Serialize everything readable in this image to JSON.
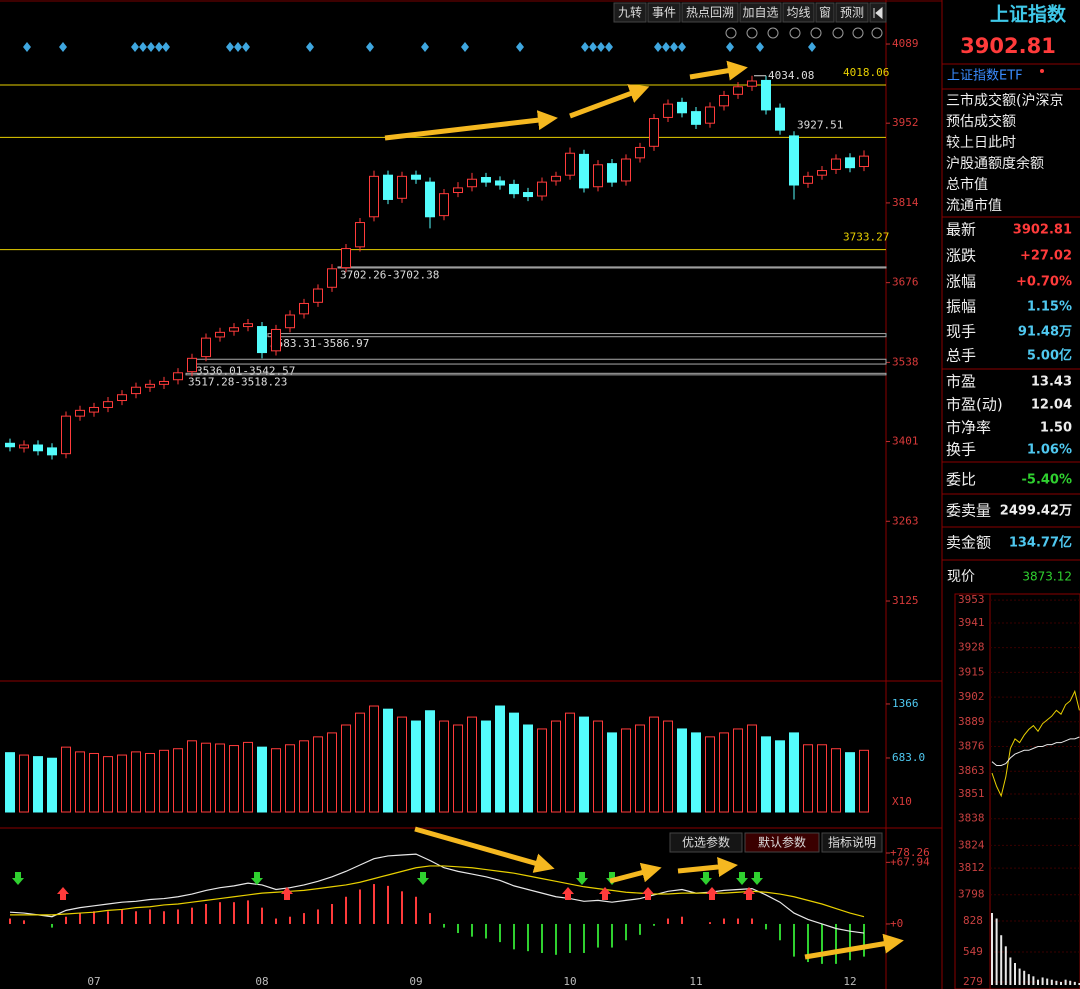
{
  "toolbar": [
    "九转",
    "事件",
    "热点回溯",
    "加自选",
    "均线",
    "窗",
    "预测"
  ],
  "chart_data": [
    {
      "type": "candlestick",
      "categories": [
        null,
        null,
        null,
        null,
        null,
        null,
        "07",
        null,
        null,
        null,
        null,
        null,
        null,
        null,
        null,
        null,
        null,
        null,
        "08",
        null,
        null,
        null,
        null,
        null,
        null,
        null,
        null,
        null,
        null,
        "09",
        null,
        null,
        null,
        null,
        null,
        null,
        null,
        null,
        null,
        null,
        "10",
        null,
        null,
        null,
        null,
        null,
        null,
        null,
        null,
        "11",
        null,
        null,
        null,
        null,
        null,
        null,
        null,
        null,
        null,
        null,
        "12",
        null
      ],
      "open": [
        3398,
        3390,
        3395,
        3390,
        3380,
        3445,
        3452,
        3460,
        3472,
        3484,
        3495,
        3500,
        3508,
        3522,
        3548,
        3582,
        3592,
        3600,
        3600,
        3558,
        3598,
        3622,
        3642,
        3668,
        3702,
        3738,
        3790,
        3862,
        3822,
        3862,
        3850,
        3792,
        3832,
        3842,
        3858,
        3852,
        3846,
        3832,
        3826,
        3852,
        3862,
        3898,
        3842,
        3882,
        3852,
        3892,
        3912,
        3962,
        3988,
        3972,
        3952,
        3982,
        4002,
        4016,
        4026,
        3978,
        3930,
        3848,
        3862,
        3872,
        3892,
        3877
      ],
      "high": [
        3406,
        3403,
        3403,
        3398,
        3453,
        3463,
        3468,
        3478,
        3490,
        3503,
        3508,
        3513,
        3528,
        3553,
        3588,
        3598,
        3606,
        3613,
        3608,
        3603,
        3628,
        3648,
        3673,
        3708,
        3743,
        3788,
        3870,
        3870,
        3868,
        3870,
        3858,
        3838,
        3850,
        3866,
        3866,
        3860,
        3854,
        3840,
        3858,
        3868,
        3910,
        3906,
        3888,
        3890,
        3898,
        3918,
        3968,
        3993,
        3996,
        3980,
        3988,
        4008,
        4023,
        4034.08,
        4034,
        3986,
        3938,
        3868,
        3878,
        3898,
        3900,
        3905
      ],
      "low": [
        3384,
        3382,
        3377,
        3370,
        3372,
        3437,
        3444,
        3452,
        3464,
        3476,
        3487,
        3492,
        3500,
        3514,
        3540,
        3574,
        3584,
        3592,
        3545,
        3550,
        3590,
        3614,
        3634,
        3660,
        3694,
        3730,
        3782,
        3812,
        3814,
        3847,
        3770,
        3784,
        3824,
        3834,
        3842,
        3837,
        3822,
        3817,
        3818,
        3844,
        3854,
        3832,
        3834,
        3842,
        3844,
        3884,
        3904,
        3954,
        3962,
        3942,
        3944,
        3974,
        3994,
        4008,
        3967,
        3932,
        3820,
        3840,
        3854,
        3864,
        3867,
        3869
      ],
      "close": [
        3392,
        3395,
        3385,
        3378,
        3445,
        3455,
        3460,
        3470,
        3482,
        3495,
        3500,
        3505,
        3520,
        3545,
        3580,
        3590,
        3598,
        3605,
        3555,
        3595,
        3620,
        3640,
        3665,
        3700,
        3735,
        3780,
        3860,
        3820,
        3860,
        3855,
        3790,
        3830,
        3840,
        3855,
        3850,
        3845,
        3830,
        3825,
        3850,
        3860,
        3900,
        3840,
        3880,
        3850,
        3890,
        3910,
        3960,
        3985,
        3970,
        3950,
        3980,
        4000,
        4015,
        4025,
        3975,
        3940,
        3845,
        3860,
        3870,
        3890,
        3875,
        3895
      ],
      "up_color": "#ff3b3b",
      "down_color": "#54fcfc",
      "ylim": [
        2988.3,
        4165.2
      ],
      "yticks": [
        4089,
        3952,
        3814,
        3676,
        3538,
        3401,
        3263,
        3125
      ],
      "hlines": [
        {
          "value": 4018.06,
          "label": "4018.06"
        },
        {
          "value": 3927.51,
          "label": "3927.51"
        },
        {
          "value": 3733.27,
          "label": "3733.27"
        }
      ],
      "hline_color": "#e8d000",
      "peak_label": "4034.08",
      "gaps": [
        {
          "low": 3702.26,
          "high": 3702.38,
          "label": "3702.26-3702.38"
        },
        {
          "low": 3583.31,
          "high": 3586.97,
          "label": "3583.31-3586.97"
        },
        {
          "low": 3536.01,
          "high": 3542.57,
          "label": "3536.01-3542.57"
        },
        {
          "low": 3517.28,
          "high": 3518.23,
          "label": "3517.28-3518.23"
        }
      ]
    },
    {
      "type": "bar",
      "values": [
        750,
        720,
        700,
        680,
        820,
        760,
        740,
        700,
        720,
        760,
        740,
        780,
        800,
        900,
        870,
        860,
        840,
        880,
        820,
        800,
        850,
        900,
        950,
        1000,
        1100,
        1250,
        1340,
        1300,
        1200,
        1150,
        1280,
        1150,
        1100,
        1200,
        1150,
        1340,
        1250,
        1100,
        1050,
        1150,
        1250,
        1200,
        1150,
        1000,
        1050,
        1100,
        1200,
        1150,
        1050,
        1000,
        950,
        1000,
        1050,
        1100,
        950,
        900,
        1000,
        850,
        850,
        800,
        750,
        780
      ],
      "ylim": [
        0,
        1631
      ],
      "yticks": [
        1366,
        {
          "value": 683,
          "label": "683.0"
        }
      ],
      "unit": "X10"
    },
    {
      "type": "macd",
      "dif": [
        13,
        12,
        10,
        8,
        15,
        18,
        20,
        22,
        24,
        25,
        27,
        28,
        30,
        33,
        37,
        40,
        42,
        45,
        43,
        38,
        40,
        43,
        47,
        52,
        58,
        65,
        72,
        75,
        76,
        77,
        70,
        62,
        58,
        55,
        52,
        48,
        42,
        38,
        34,
        30,
        28,
        25,
        26,
        24,
        26,
        28,
        32,
        36,
        38,
        34,
        35,
        37,
        38,
        39,
        32,
        24,
        12,
        5,
        0,
        -5,
        -8,
        -10
      ],
      "dea": [
        10,
        10,
        10,
        10,
        11,
        12,
        13,
        15,
        16,
        18,
        19,
        21,
        22,
        24,
        26,
        28,
        30,
        32,
        34,
        35,
        36,
        37,
        39,
        41,
        43,
        46,
        50,
        54,
        58,
        62,
        64,
        64,
        63,
        62,
        60,
        58,
        56,
        53,
        50,
        47,
        44,
        41,
        39,
        37,
        35,
        34,
        33,
        33,
        34,
        34,
        34,
        34,
        35,
        36,
        35,
        33,
        30,
        26,
        22,
        17,
        12,
        8
      ],
      "histogram": [
        6,
        4,
        0,
        -4,
        8,
        12,
        14,
        14,
        16,
        14,
        16,
        14,
        16,
        18,
        22,
        24,
        24,
        26,
        18,
        6,
        8,
        12,
        16,
        22,
        30,
        38,
        44,
        42,
        36,
        30,
        12,
        -4,
        -10,
        -14,
        -16,
        -20,
        -28,
        -30,
        -32,
        -34,
        -32,
        -32,
        -26,
        -26,
        -18,
        -12,
        -2,
        6,
        8,
        0,
        2,
        6,
        6,
        6,
        -6,
        -18,
        -36,
        -42,
        -44,
        -44,
        -40,
        -36
      ],
      "ylim": [
        -67.3,
        101.4
      ],
      "yticks": [
        {
          "value": 78.26,
          "label": "+78.26"
        },
        {
          "value": 67.94,
          "label": "+67.94"
        },
        {
          "value": 0,
          "label": "+0"
        }
      ]
    },
    {
      "type": "intraday",
      "current_label": "现价",
      "current_value": "3873.12",
      "price": [
        3862,
        3855,
        3850,
        3860,
        3875,
        3880,
        3878,
        3882,
        3885,
        3887,
        3884,
        3888,
        3890,
        3892,
        3895,
        3893,
        3898,
        3900,
        3905,
        3895
      ],
      "avg": [
        3868,
        3866,
        3866,
        3867,
        3870,
        3872,
        3873,
        3874,
        3874,
        3875,
        3876,
        3876,
        3877,
        3877,
        3878,
        3878,
        3879,
        3880,
        3880,
        3881
      ],
      "ylim": [
        3792.6,
        3955.7
      ],
      "yticks": [
        3953,
        3941,
        3928,
        3915,
        3902,
        3889,
        3876,
        3863,
        3851,
        3838,
        3824,
        3812,
        3798
      ],
      "volume": [
        900,
        850,
        700,
        600,
        500,
        450,
        400,
        380,
        350,
        330,
        300,
        320,
        310,
        300,
        290,
        280,
        300,
        290,
        280,
        270
      ],
      "volume_ylim": [
        252,
        972
      ],
      "volume_yticks": [
        828,
        549,
        279
      ]
    }
  ],
  "macd_buttons": [
    "优选参数",
    "默认参数",
    "指标说明"
  ],
  "side_panel": {
    "title": "上证指数",
    "price": "3902.81",
    "etf": "上证指数ETF",
    "info_rows": [
      "三市成交额(沪深京",
      "预估成交额",
      "较上日此时",
      "沪股通额度余额",
      "总市值",
      "流通市值"
    ],
    "quote_rows": [
      {
        "label": "最新",
        "value": "3902.81"
      },
      {
        "label": "涨跌",
        "value": "+27.02"
      },
      {
        "label": "涨幅",
        "value": "+0.70%"
      },
      {
        "label": "振幅",
        "value": "1.15%"
      },
      {
        "label": "现手",
        "value": "91.48万"
      },
      {
        "label": "总手",
        "value": "5.00亿"
      },
      {
        "label": "市盈",
        "value": "13.43"
      },
      {
        "label": "市盈(动)",
        "value": "12.04"
      },
      {
        "label": "市净率",
        "value": "1.50"
      },
      {
        "label": "换手",
        "value": "1.06%"
      },
      {
        "label": "委比",
        "value": "-5.40%"
      },
      {
        "label": "委卖量",
        "value": "2499.42万"
      },
      {
        "label": "卖金额",
        "value": "134.77亿"
      }
    ]
  }
}
